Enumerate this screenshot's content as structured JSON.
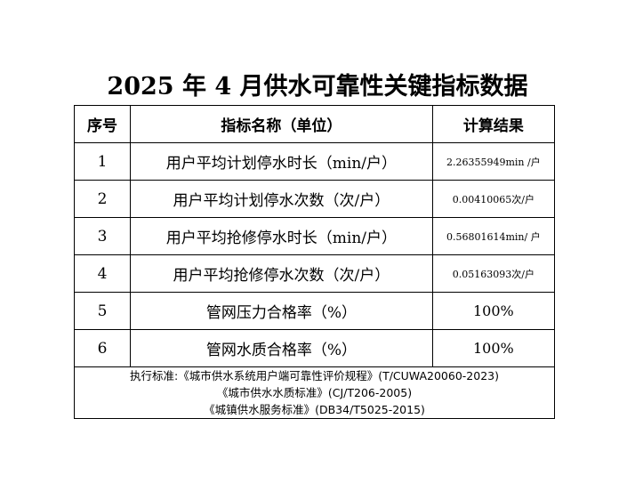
{
  "title": "2025 年 4 月供水可靠性关键指标数据",
  "headers": {
    "no": "序号",
    "name": "指标名称（单位）",
    "value": "计算结果"
  },
  "rows": [
    {
      "no": "1",
      "name": "用户平均计划停水时长（min/户）",
      "value": "2.26355949min /户"
    },
    {
      "no": "2",
      "name": "用户平均计划停水次数（次/户）",
      "value": "0.00410065次/户"
    },
    {
      "no": "3",
      "name": "用户平均抢修停水时长（min/户）",
      "value": "0.56801614min/ 户"
    },
    {
      "no": "4",
      "name": "用户平均抢修停水次数（次/户）",
      "value": "0.05163093次/户"
    },
    {
      "no": "5",
      "name": "管网压力合格率（%）",
      "value": "100%"
    },
    {
      "no": "6",
      "name": "管网水质合格率（%）",
      "value": "100%"
    }
  ],
  "footer": {
    "line1": "执行标准:《城市供水系统用户端可靠性评价规程》(T/CUWA20060-2023)",
    "line2": "《城市供水水质标准》(CJ/T206-2005)",
    "line3": "《城镇供水服务标准》(DB34/T5025-2015)"
  }
}
